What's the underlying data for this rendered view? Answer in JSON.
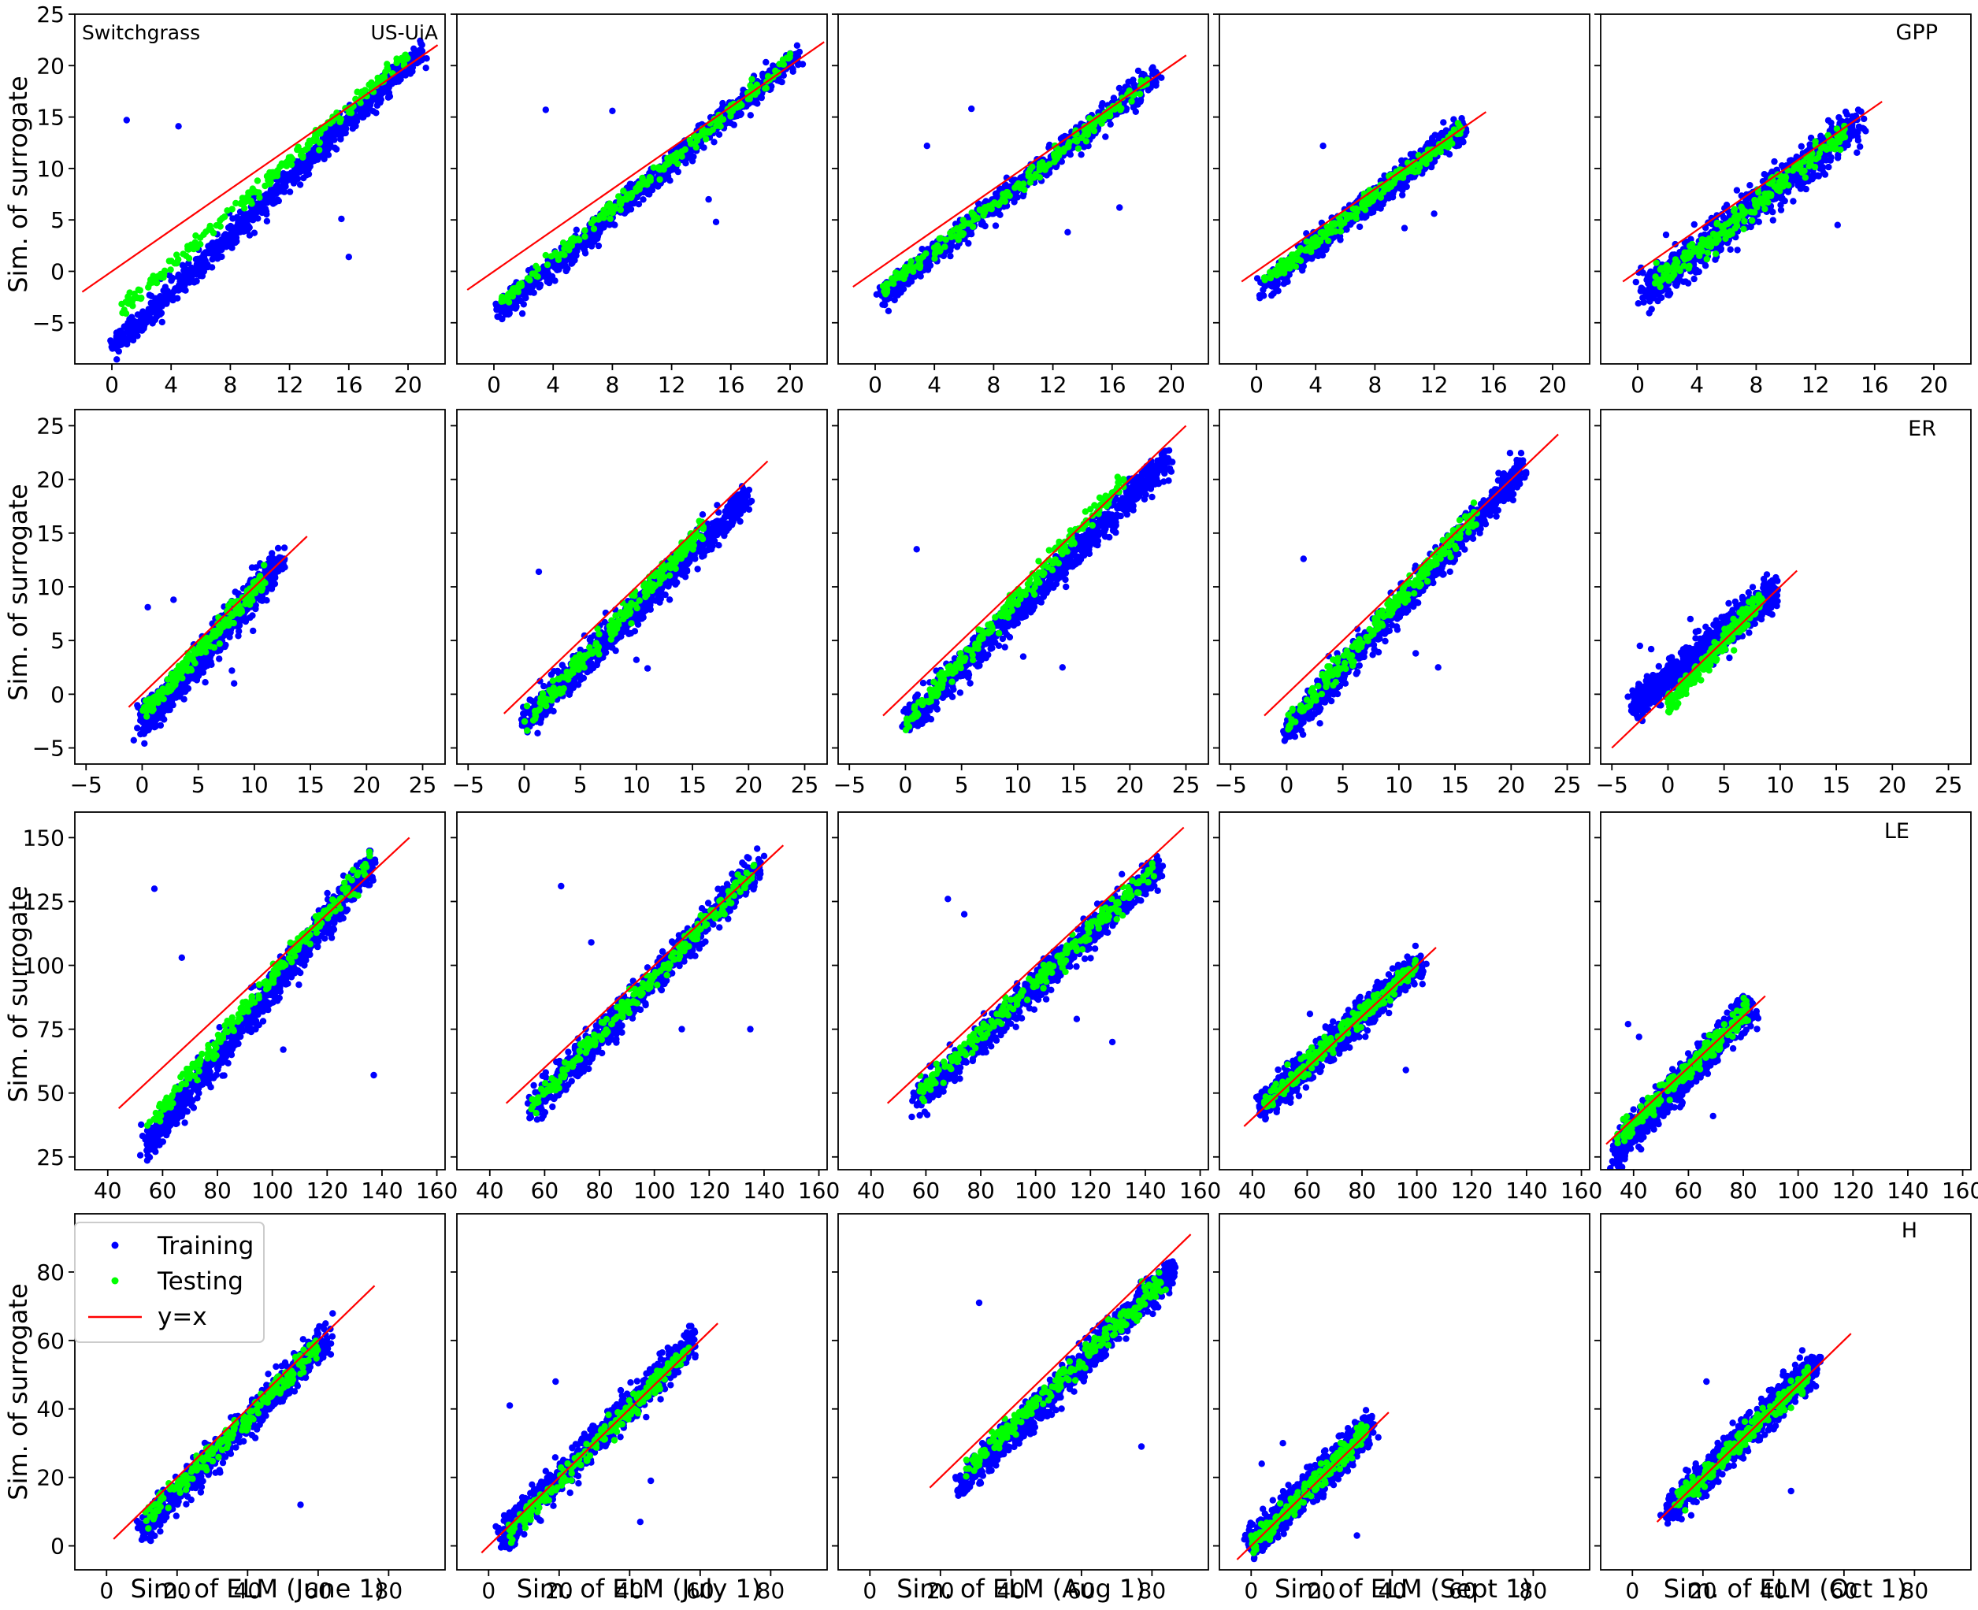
{
  "figure": {
    "site_label": "Switchgrass",
    "site_id": "US-UiA",
    "ylabel": "Sim. of surrogate",
    "xlabels": [
      "Sim. of ELM (June 1)",
      "Sim. of ELM (July 1)",
      "Sim. of ELM (Aug 1)",
      "Sim. of ELM (Sept 1)",
      "Sim. of ELM (Oct 1)"
    ],
    "variables": [
      "GPP",
      "ER",
      "LE",
      "H"
    ],
    "legend": {
      "training": "Training",
      "testing": "Testing",
      "identity": "y=x",
      "position": "upper-left"
    },
    "colors": {
      "training": "#0000ff",
      "testing": "#00ff00",
      "identity": "#ff0000",
      "axes": "#000000"
    }
  },
  "chart_data": [
    {
      "type": "scatter",
      "variable": "GPP",
      "panel": "June 1",
      "xlim": [
        -2.5,
        22.5
      ],
      "ylim": [
        -9,
        25
      ],
      "xticks": [
        0,
        4,
        8,
        12,
        16,
        20
      ],
      "yticks": [
        -5,
        0,
        5,
        10,
        15,
        20,
        25
      ],
      "training_cloud": {
        "x_range": [
          0.2,
          21
        ],
        "y_range": [
          -7.3,
          21.5
        ],
        "outliers": [
          [
            1,
            14.7
          ],
          [
            4.5,
            14.1
          ],
          [
            15.5,
            5.1
          ],
          [
            16,
            1.4
          ]
        ]
      },
      "testing_cloud": {
        "x_range": [
          0.5,
          20
        ],
        "y_range": [
          -4,
          21
        ]
      },
      "identity_line": [
        [
          -2,
          -2
        ],
        [
          22,
          22
        ]
      ]
    },
    {
      "type": "scatter",
      "variable": "GPP",
      "panel": "July 1",
      "xlim": [
        -2.5,
        22.5
      ],
      "ylim": [
        -9,
        25
      ],
      "xticks": [
        0,
        4,
        8,
        12,
        16,
        20
      ],
      "yticks": [],
      "training_cloud": {
        "x_range": [
          0.3,
          20.5
        ],
        "y_range": [
          -4,
          21
        ],
        "outliers": [
          [
            3.5,
            15.7
          ],
          [
            8,
            15.6
          ],
          [
            14.5,
            7
          ],
          [
            15,
            4.8
          ]
        ]
      },
      "testing_cloud": {
        "x_range": [
          0.5,
          20
        ],
        "y_range": [
          -3,
          20.5
        ]
      },
      "identity_line": [
        [
          -1.8,
          -1.8
        ],
        [
          22.3,
          22.3
        ]
      ]
    },
    {
      "type": "scatter",
      "variable": "GPP",
      "panel": "Aug 1",
      "xlim": [
        -2.5,
        22.5
      ],
      "ylim": [
        -9,
        25
      ],
      "xticks": [
        0,
        4,
        8,
        12,
        16,
        20
      ],
      "yticks": [],
      "training_cloud": {
        "x_range": [
          0.3,
          19
        ],
        "y_range": [
          -2.5,
          19
        ],
        "outliers": [
          [
            3.5,
            12.2
          ],
          [
            6.5,
            15.8
          ],
          [
            13,
            3.8
          ],
          [
            16.5,
            6.2
          ]
        ]
      },
      "testing_cloud": {
        "x_range": [
          0.5,
          18.5
        ],
        "y_range": [
          -2,
          18.5
        ]
      },
      "identity_line": [
        [
          -1.5,
          -1.5
        ],
        [
          21,
          21
        ]
      ]
    },
    {
      "type": "scatter",
      "variable": "GPP",
      "panel": "Sept 1",
      "xlim": [
        -2.5,
        22.5
      ],
      "ylim": [
        -9,
        25
      ],
      "xticks": [
        0,
        4,
        8,
        12,
        16,
        20
      ],
      "yticks": [],
      "training_cloud": {
        "x_range": [
          0.5,
          14
        ],
        "y_range": [
          -1.5,
          14
        ],
        "outliers": [
          [
            4.5,
            12.2
          ],
          [
            10,
            4.2
          ],
          [
            12,
            5.6
          ]
        ]
      },
      "testing_cloud": {
        "x_range": [
          0.5,
          14
        ],
        "y_range": [
          -1,
          14
        ]
      },
      "identity_line": [
        [
          -1,
          -1
        ],
        [
          15.5,
          15.5
        ]
      ]
    },
    {
      "type": "scatter",
      "variable": "GPP",
      "panel": "Oct 1",
      "xlim": [
        -2.5,
        22.5
      ],
      "ylim": [
        -9,
        25
      ],
      "xticks": [
        0,
        4,
        8,
        12,
        16,
        20
      ],
      "yticks": [],
      "training_cloud": {
        "x_range": [
          0.5,
          15
        ],
        "y_range": [
          -2,
          14.5
        ],
        "outliers": [
          [
            13.5,
            4.5
          ]
        ]
      },
      "testing_cloud": {
        "x_range": [
          1,
          14
        ],
        "y_range": [
          -1.5,
          13.5
        ]
      },
      "identity_line": [
        [
          -1,
          -1
        ],
        [
          16.5,
          16.5
        ]
      ]
    },
    {
      "type": "scatter",
      "variable": "ER",
      "panel": "June 1",
      "xlim": [
        -6,
        27
      ],
      "ylim": [
        -6.5,
        26.5
      ],
      "xticks": [
        -5,
        0,
        5,
        10,
        15,
        20,
        25
      ],
      "yticks": [
        -5,
        0,
        5,
        10,
        15,
        20,
        25
      ],
      "training_cloud": {
        "x_range": [
          0,
          12.5
        ],
        "y_range": [
          -3,
          12.5
        ],
        "outliers": [
          [
            0.5,
            8.1
          ],
          [
            2.8,
            8.8
          ],
          [
            8,
            2.2
          ],
          [
            8.2,
            1
          ]
        ]
      },
      "testing_cloud": {
        "x_range": [
          0,
          11
        ],
        "y_range": [
          -2,
          11
        ]
      },
      "identity_line": [
        [
          -1.2,
          -1.2
        ],
        [
          14.7,
          14.7
        ]
      ]
    },
    {
      "type": "scatter",
      "variable": "ER",
      "panel": "July 1",
      "xlim": [
        -6,
        27
      ],
      "ylim": [
        -6.5,
        26.5
      ],
      "xticks": [
        -5,
        0,
        5,
        10,
        15,
        20,
        25
      ],
      "yticks": [],
      "training_cloud": {
        "x_range": [
          0,
          20
        ],
        "y_range": [
          -2.7,
          18.5
        ],
        "outliers": [
          [
            1.3,
            11.4
          ],
          [
            10,
            3.2
          ],
          [
            11,
            2.4
          ]
        ]
      },
      "testing_cloud": {
        "x_range": [
          0,
          16
        ],
        "y_range": [
          -2.7,
          15.5
        ]
      },
      "identity_line": [
        [
          -1.8,
          -1.8
        ],
        [
          21.7,
          21.7
        ]
      ]
    },
    {
      "type": "scatter",
      "variable": "ER",
      "panel": "Aug 1",
      "xlim": [
        -6,
        27
      ],
      "ylim": [
        -6.5,
        26.5
      ],
      "xticks": [
        -5,
        0,
        5,
        10,
        15,
        20,
        25
      ],
      "yticks": [],
      "training_cloud": {
        "x_range": [
          0,
          23.5
        ],
        "y_range": [
          -2.7,
          22
        ],
        "outliers": [
          [
            1,
            13.5
          ],
          [
            10.5,
            3.5
          ],
          [
            14,
            2.5
          ]
        ]
      },
      "testing_cloud": {
        "x_range": [
          0,
          19.5
        ],
        "y_range": [
          -2.7,
          20
        ]
      },
      "identity_line": [
        [
          -2,
          -2
        ],
        [
          25,
          25
        ]
      ]
    },
    {
      "type": "scatter",
      "variable": "ER",
      "panel": "Sept 1",
      "xlim": [
        -6,
        27
      ],
      "ylim": [
        -6.5,
        26.5
      ],
      "xticks": [
        -5,
        0,
        5,
        10,
        15,
        20,
        25
      ],
      "yticks": [],
      "training_cloud": {
        "x_range": [
          0,
          21
        ],
        "y_range": [
          -3.5,
          21
        ],
        "outliers": [
          [
            1.5,
            12.6
          ],
          [
            11.5,
            3.8
          ],
          [
            13.5,
            2.5
          ]
        ]
      },
      "testing_cloud": {
        "x_range": [
          0,
          17
        ],
        "y_range": [
          -3,
          17
        ]
      },
      "identity_line": [
        [
          -2,
          -2
        ],
        [
          24.2,
          24.2
        ]
      ]
    },
    {
      "type": "scatter",
      "variable": "ER",
      "panel": "Oct 1",
      "xlim": [
        -6,
        27
      ],
      "ylim": [
        -6.5,
        26.5
      ],
      "xticks": [
        -5,
        0,
        5,
        10,
        15,
        20,
        25
      ],
      "yticks": [],
      "training_cloud": {
        "x_range": [
          -3,
          9.5
        ],
        "y_range": [
          -1,
          9.5
        ],
        "outliers": [
          [
            -2.5,
            4.5
          ],
          [
            -1.5,
            4.2
          ],
          [
            2,
            7
          ]
        ]
      },
      "testing_cloud": {
        "x_range": [
          0,
          8.5
        ],
        "y_range": [
          -1,
          9
        ]
      },
      "identity_line": [
        [
          -5,
          -5
        ],
        [
          11.5,
          11.5
        ]
      ]
    },
    {
      "type": "scatter",
      "variable": "LE",
      "panel": "June 1",
      "xlim": [
        28,
        163
      ],
      "ylim": [
        20,
        160
      ],
      "xticks": [
        40,
        60,
        80,
        100,
        120,
        140,
        160
      ],
      "yticks": [
        25,
        50,
        75,
        100,
        125,
        150
      ],
      "training_cloud": {
        "x_range": [
          53,
          137
        ],
        "y_range": [
          27,
          141
        ],
        "outliers": [
          [
            57,
            130
          ],
          [
            67,
            103
          ],
          [
            104,
            67
          ],
          [
            137,
            57
          ]
        ]
      },
      "testing_cloud": {
        "x_range": [
          54,
          136
        ],
        "y_range": [
          37,
          141
        ]
      },
      "identity_line": [
        [
          44,
          44
        ],
        [
          150,
          150
        ]
      ]
    },
    {
      "type": "scatter",
      "variable": "LE",
      "panel": "July 1",
      "xlim": [
        28,
        163
      ],
      "ylim": [
        20,
        160
      ],
      "xticks": [
        40,
        60,
        80,
        100,
        120,
        140,
        160
      ],
      "yticks": [],
      "training_cloud": {
        "x_range": [
          55,
          138
        ],
        "y_range": [
          43,
          139
        ],
        "outliers": [
          [
            66,
            131
          ],
          [
            77,
            109
          ],
          [
            110,
            75
          ],
          [
            135,
            75
          ]
        ]
      },
      "testing_cloud": {
        "x_range": [
          55,
          137
        ],
        "y_range": [
          44,
          138
        ]
      },
      "identity_line": [
        [
          46,
          46
        ],
        [
          147,
          147
        ]
      ]
    },
    {
      "type": "scatter",
      "variable": "LE",
      "panel": "Aug 1",
      "xlim": [
        28,
        163
      ],
      "ylim": [
        20,
        160
      ],
      "xticks": [
        40,
        60,
        80,
        100,
        120,
        140,
        160
      ],
      "yticks": [],
      "training_cloud": {
        "x_range": [
          56,
          145
        ],
        "y_range": [
          46,
          139
        ],
        "outliers": [
          [
            68,
            126
          ],
          [
            74,
            120
          ],
          [
            115,
            79
          ],
          [
            128,
            70
          ]
        ]
      },
      "testing_cloud": {
        "x_range": [
          57,
          144
        ],
        "y_range": [
          50,
          138
        ]
      },
      "identity_line": [
        [
          46,
          46
        ],
        [
          154,
          154
        ]
      ]
    },
    {
      "type": "scatter",
      "variable": "LE",
      "panel": "Sept 1",
      "xlim": [
        28,
        163
      ],
      "ylim": [
        20,
        160
      ],
      "xticks": [
        40,
        60,
        80,
        100,
        120,
        140,
        160
      ],
      "yticks": [],
      "training_cloud": {
        "x_range": [
          43,
          101
        ],
        "y_range": [
          44,
          101
        ],
        "outliers": [
          [
            61,
            81
          ],
          [
            96,
            59
          ]
        ]
      },
      "testing_cloud": {
        "x_range": [
          44,
          100
        ],
        "y_range": [
          45,
          100
        ]
      },
      "identity_line": [
        [
          37,
          37
        ],
        [
          107,
          107
        ]
      ]
    },
    {
      "type": "scatter",
      "variable": "LE",
      "panel": "Oct 1",
      "xlim": [
        28,
        163
      ],
      "ylim": [
        20,
        160
      ],
      "xticks": [
        40,
        60,
        80,
        100,
        120,
        140,
        160
      ],
      "yticks": [],
      "training_cloud": {
        "x_range": [
          33,
          83
        ],
        "y_range": [
          27,
          84
        ],
        "outliers": [
          [
            38,
            77
          ],
          [
            42,
            72
          ],
          [
            69,
            41
          ]
        ]
      },
      "testing_cloud": {
        "x_range": [
          34,
          82
        ],
        "y_range": [
          32,
          83
        ]
      },
      "identity_line": [
        [
          30,
          30
        ],
        [
          88,
          88
        ]
      ]
    },
    {
      "type": "scatter",
      "variable": "H",
      "panel": "June 1",
      "xlim": [
        -9,
        96
      ],
      "ylim": [
        -7,
        97
      ],
      "xticks": [
        0,
        20,
        40,
        60,
        80
      ],
      "yticks": [
        0,
        20,
        40,
        60,
        80
      ],
      "training_cloud": {
        "x_range": [
          10,
          63
        ],
        "y_range": [
          5,
          61
        ],
        "outliers": [
          [
            55,
            12
          ]
        ]
      },
      "testing_cloud": {
        "x_range": [
          11,
          60
        ],
        "y_range": [
          8,
          58
        ]
      },
      "identity_line": [
        [
          2,
          2
        ],
        [
          76,
          76
        ]
      ]
    },
    {
      "type": "scatter",
      "variable": "H",
      "panel": "July 1",
      "xlim": [
        -9,
        96
      ],
      "ylim": [
        -7,
        97
      ],
      "xticks": [
        0,
        20,
        40,
        60,
        80
      ],
      "yticks": [],
      "training_cloud": {
        "x_range": [
          4,
          58
        ],
        "y_range": [
          3,
          60
        ],
        "outliers": [
          [
            6,
            41
          ],
          [
            19,
            48
          ],
          [
            43,
            7
          ],
          [
            46,
            19
          ]
        ]
      },
      "testing_cloud": {
        "x_range": [
          5,
          57
        ],
        "y_range": [
          3,
          58
        ]
      },
      "identity_line": [
        [
          -2,
          -2
        ],
        [
          65,
          65
        ]
      ]
    },
    {
      "type": "scatter",
      "variable": "H",
      "panel": "Aug 1",
      "xlim": [
        -9,
        96
      ],
      "ylim": [
        -7,
        97
      ],
      "xticks": [
        0,
        20,
        40,
        60,
        80
      ],
      "yticks": [],
      "training_cloud": {
        "x_range": [
          25,
          86
        ],
        "y_range": [
          17,
          80
        ],
        "outliers": [
          [
            31,
            71
          ],
          [
            77,
            29
          ]
        ]
      },
      "testing_cloud": {
        "x_range": [
          27,
          84
        ],
        "y_range": [
          22,
          78
        ]
      },
      "identity_line": [
        [
          17,
          17
        ],
        [
          91,
          91
        ]
      ]
    },
    {
      "type": "scatter",
      "variable": "H",
      "panel": "Sept 1",
      "xlim": [
        -9,
        96
      ],
      "ylim": [
        -7,
        97
      ],
      "xticks": [
        0,
        20,
        40,
        60,
        80
      ],
      "yticks": [],
      "training_cloud": {
        "x_range": [
          0,
          34
        ],
        "y_range": [
          0,
          35
        ],
        "outliers": [
          [
            3,
            24
          ],
          [
            9,
            30
          ],
          [
            30,
            3
          ]
        ]
      },
      "testing_cloud": {
        "x_range": [
          0,
          33
        ],
        "y_range": [
          0,
          34
        ]
      },
      "identity_line": [
        [
          -4,
          -4
        ],
        [
          39,
          39
        ]
      ]
    },
    {
      "type": "scatter",
      "variable": "H",
      "panel": "Oct 1",
      "xlim": [
        -9,
        96
      ],
      "ylim": [
        -7,
        97
      ],
      "xticks": [
        0,
        20,
        40,
        60,
        80
      ],
      "yticks": [],
      "training_cloud": {
        "x_range": [
          10,
          52
        ],
        "y_range": [
          10,
          53
        ],
        "outliers": [
          [
            21,
            48
          ],
          [
            45,
            16
          ]
        ]
      },
      "testing_cloud": {
        "x_range": [
          12,
          50
        ],
        "y_range": [
          12,
          50
        ]
      },
      "identity_line": [
        [
          7,
          7
        ],
        [
          62,
          62
        ]
      ]
    }
  ]
}
